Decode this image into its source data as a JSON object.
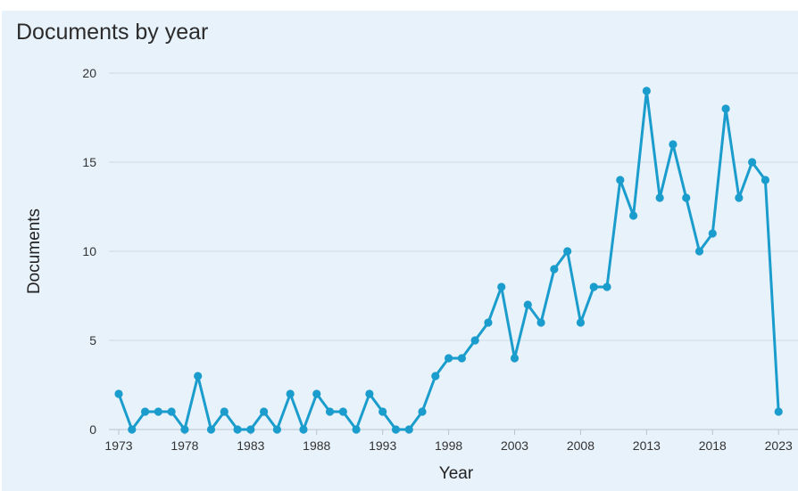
{
  "chart_data": {
    "type": "line",
    "title": "Documents by year",
    "xlabel": "Year",
    "ylabel": "Documents",
    "x_ticks": [
      1973,
      1978,
      1983,
      1988,
      1993,
      1998,
      2003,
      2008,
      2013,
      2018,
      2023
    ],
    "y_ticks": [
      0,
      5,
      10,
      15,
      20
    ],
    "xlim": [
      1973,
      2024
    ],
    "ylim": [
      0,
      20
    ],
    "grid": "horizontal",
    "series_color": "#1a9ccc",
    "series": [
      {
        "x": [
          1973,
          1974,
          1975,
          1976,
          1977,
          1978,
          1979,
          1980,
          1981,
          1982,
          1983,
          1984,
          1985,
          1986,
          1987,
          1988,
          1989,
          1990,
          1991,
          1992,
          1993,
          1994,
          1995,
          1996,
          1997,
          1998,
          1999,
          2000,
          2001,
          2002,
          2003,
          2004,
          2005,
          2006,
          2007,
          2008,
          2009,
          2010,
          2011,
          2012,
          2013,
          2014,
          2015,
          2016,
          2017,
          2018,
          2019,
          2020,
          2021,
          2022,
          2023
        ],
        "values": [
          2,
          0,
          1,
          1,
          1,
          0,
          3,
          0,
          1,
          0,
          0,
          1,
          0,
          2,
          0,
          2,
          1,
          1,
          0,
          2,
          1,
          0,
          0,
          1,
          3,
          4,
          4,
          5,
          6,
          8,
          4,
          7,
          6,
          9,
          10,
          6,
          8,
          8,
          14,
          12,
          19,
          13,
          16,
          13,
          10,
          11,
          18,
          13,
          15,
          14,
          1
        ]
      }
    ]
  }
}
